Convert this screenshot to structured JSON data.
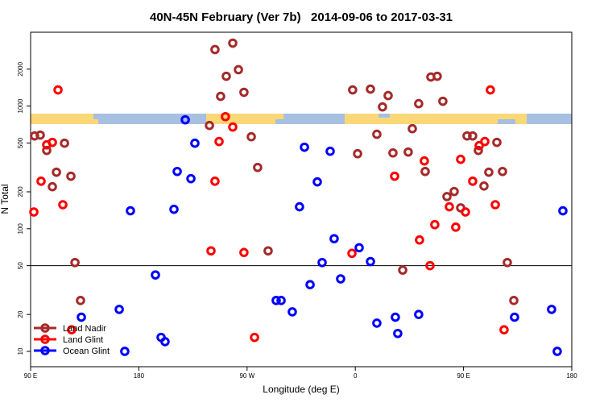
{
  "chart_data": {
    "type": "scatter",
    "title": "40N-45N February (Ver 7b)   2014-09-06 to 2017-03-31",
    "x_label": "Longitude (deg E)",
    "y_label": "N Total",
    "xlim": [
      90,
      540
    ],
    "xticks": [
      {
        "value": 90,
        "label": "90 E"
      },
      180,
      {
        "value": 270,
        "label": "90 W"
      },
      {
        "value": 360,
        "label": "0"
      },
      {
        "value": 450,
        "label": "90 E"
      },
      {
        "value": 540,
        "label": "180"
      }
    ],
    "ylim": [
      7.5,
      4000
    ],
    "yticks": [
      10,
      20,
      50,
      100,
      200,
      500,
      1000,
      2000
    ],
    "ylog": true,
    "reference_line": 50,
    "legend": "bottom-left",
    "series": [
      {
        "name": "Land Nadir",
        "color": "#a52a2a",
        "x": [
          93.3,
          98.0,
          103.4,
          108.1,
          111.5,
          118.2,
          123.5,
          126.9,
          131.5,
          243.3,
          258.1,
          262.8,
          252.7,
          248.0,
          267.4,
          238.7,
          273.5,
          278.8,
          287.5,
          357.8,
          361.9,
          372.6,
          387.3,
          382.6,
          377.9,
          391.3,
          404.0,
          407.4,
          412.7,
          422.8,
          428.1,
          432.8,
          436.2,
          442.2,
          447.6,
          452.9,
          457.6,
          462.3,
          471.0,
          467.0,
          482.4,
          486.4,
          491.8,
          477.7,
          399.4,
          418.1
        ],
        "values": [
          571,
          580,
          435,
          220,
          289,
          498,
          268,
          53,
          26,
          2890,
          3260,
          1980,
          1750,
          1200,
          1295,
          695,
          562,
          316,
          66,
          1355,
          409,
          1375,
          1218,
          985,
          589,
          415,
          422,
          654,
          1047,
          1726,
          1750,
          1095,
          183,
          201,
          148,
          571,
          571,
          435,
          289,
          223,
          293,
          53,
          26,
          506,
          46,
          293
        ]
      },
      {
        "name": "Land Glint",
        "color": "#ff0000",
        "x": [
          92.7,
          98.7,
          103.4,
          108.1,
          112.8,
          116.8,
          124.1,
          240.0,
          243.3,
          246.7,
          252.0,
          258.1,
          267.4,
          276.2,
          357.2,
          392.7,
          417.4,
          413.4,
          422.1,
          426.1,
          443.5,
          438.2,
          447.6,
          451.6,
          457.6,
          463.0,
          467.7,
          472.3,
          476.4,
          483.7
        ],
        "values": [
          137,
          244,
          483,
          506,
          1355,
          157,
          15,
          66,
          244,
          514,
          820,
          675,
          64,
          13,
          63,
          268,
          357,
          81,
          50,
          108,
          103,
          151,
          368,
          137,
          244,
          476,
          514,
          1355,
          157,
          15
        ]
      },
      {
        "name": "Ocean Glint",
        "color": "#0000ff",
        "x": [
          218.6,
          226.6,
          211.9,
          223.3,
          209.2,
          173.0,
          193.8,
          198.5,
          201.8,
          163.7,
          168.3,
          132.2,
          294.2,
          298.3,
          307.6,
          322.4,
          332.4,
          342.4,
          347.8,
          339.1,
          328.4,
          317.7,
          313.6,
          363.2,
          372.6,
          377.9,
          393.3,
          395.3,
          412.7,
          492.4,
          523.2,
          527.9,
          532.6
        ],
        "values": [
          773,
          498,
          293,
          256,
          144,
          140,
          42,
          13,
          12,
          22,
          10,
          19,
          26,
          26,
          21,
          35,
          53,
          83,
          39,
          428,
          241,
          462,
          151,
          70,
          54,
          17,
          19,
          14,
          20,
          19,
          22,
          10,
          140
        ]
      }
    ]
  }
}
